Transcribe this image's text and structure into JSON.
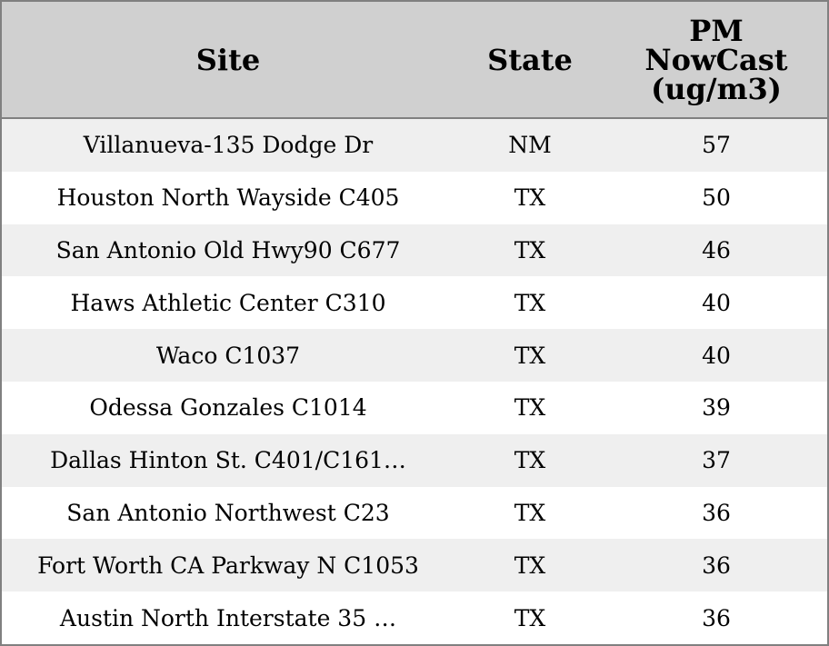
{
  "table": {
    "headers": [
      "Site",
      "State",
      "PM NowCast (ug/m3)"
    ],
    "header_lines": [
      "PM",
      "NowCast",
      "(ug/m3)"
    ],
    "rows": [
      {
        "site": "Villanueva-135 Dodge Dr",
        "state": "NM",
        "value": "57"
      },
      {
        "site": "Houston North Wayside C405",
        "state": "TX",
        "value": "50"
      },
      {
        "site": "San Antonio Old Hwy90 C677",
        "state": "TX",
        "value": "46"
      },
      {
        "site": "Haws Athletic Center C310",
        "state": "TX",
        "value": "40"
      },
      {
        "site": "Waco C1037",
        "state": "TX",
        "value": "40"
      },
      {
        "site": "Odessa Gonzales C1014",
        "state": "TX",
        "value": "39"
      },
      {
        "site": "Dallas Hinton St. C401/C161…",
        "state": "TX",
        "value": "37"
      },
      {
        "site": "San Antonio Northwest C23",
        "state": "TX",
        "value": "36"
      },
      {
        "site": "Fort Worth CA Parkway N C1053",
        "state": "TX",
        "value": "36"
      },
      {
        "site": "Austin North Interstate 35 …",
        "state": "TX",
        "value": "36"
      }
    ]
  },
  "colors": {
    "header_bg": "#d0d0d0",
    "stripe": "#efefef",
    "border": "#808080"
  }
}
